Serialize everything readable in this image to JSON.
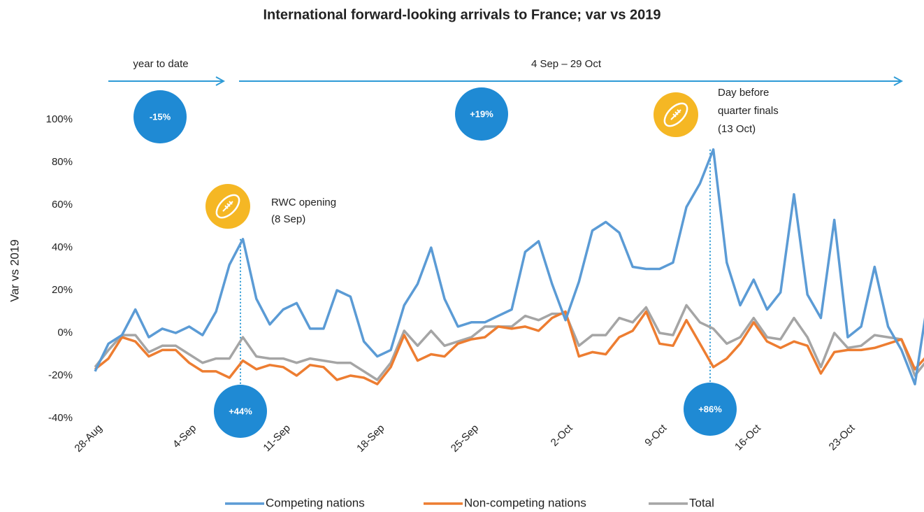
{
  "chart_data": {
    "type": "line",
    "title": "International forward-looking arrivals to France; var vs 2019",
    "y_label": "Var vs 2019",
    "categories": [
      "28-Aug",
      null,
      null,
      null,
      null,
      null,
      null,
      "4-Sep",
      null,
      null,
      null,
      null,
      null,
      null,
      "11-Sep",
      null,
      null,
      null,
      null,
      null,
      null,
      "18-Sep",
      null,
      null,
      null,
      null,
      null,
      null,
      "25-Sep",
      null,
      null,
      null,
      null,
      null,
      null,
      "2-Oct",
      null,
      null,
      null,
      null,
      null,
      null,
      "9-Oct",
      null,
      null,
      null,
      null,
      null,
      null,
      "16-Oct",
      null,
      null,
      null,
      null,
      null,
      null,
      "23-Oct",
      null,
      null,
      null,
      null,
      null,
      null
    ],
    "series": [
      {
        "name": "Competing nations",
        "color": "#5b9bd5",
        "values": [
          -18,
          -5,
          -1,
          11,
          -2,
          2,
          0,
          3,
          -1,
          10,
          32,
          44,
          16,
          4,
          11,
          14,
          2,
          2,
          20,
          17,
          -4,
          -11,
          -8,
          13,
          23,
          40,
          16,
          3,
          5,
          5,
          8,
          11,
          38,
          43,
          23,
          6,
          24,
          48,
          52,
          47,
          31,
          30,
          30,
          33,
          59,
          70,
          86,
          33,
          13,
          25,
          11,
          19,
          65,
          18,
          7,
          53,
          -2,
          3,
          31,
          3,
          -8,
          -24,
          17
        ]
      },
      {
        "name": "Non-competing nations",
        "color": "#ed7d31",
        "values": [
          -17,
          -12,
          -2,
          -4,
          -11,
          -8,
          -8,
          -14,
          -18,
          -18,
          -21,
          -13,
          -17,
          -15,
          -16,
          -20,
          -15,
          -16,
          -22,
          -20,
          -21,
          -24,
          -16,
          -1,
          -13,
          -10,
          -11,
          -5,
          -3,
          -2,
          3,
          2,
          3,
          1,
          7,
          10,
          -11,
          -9,
          -10,
          -2,
          1,
          10,
          -5,
          -6,
          6,
          -5,
          -16,
          -12,
          -5,
          5,
          -4,
          -7,
          -4,
          -6,
          -19,
          -9,
          -8,
          -8,
          -7,
          -5,
          -3,
          -17,
          -10
        ]
      },
      {
        "name": "Total",
        "color": "#a5a5a5",
        "values": [
          -16,
          -8,
          -1,
          -1,
          -9,
          -6,
          -6,
          -10,
          -14,
          -12,
          -12,
          -2,
          -11,
          -12,
          -12,
          -14,
          -12,
          -13,
          -14,
          -14,
          -18,
          -22,
          -14,
          1,
          -6,
          1,
          -6,
          -4,
          -2,
          3,
          3,
          3,
          8,
          6,
          9,
          9,
          -6,
          -1,
          -1,
          7,
          5,
          12,
          0,
          -1,
          13,
          5,
          2,
          -5,
          -2,
          7,
          -2,
          -3,
          7,
          -2,
          -16,
          0,
          -7,
          -6,
          -1,
          -2,
          -3,
          -20,
          -12
        ]
      }
    ],
    "ylim": [
      -40,
      100
    ],
    "yticks": [
      {
        "value": -40,
        "label": "-40%"
      },
      {
        "value": -20,
        "label": "-20%"
      },
      {
        "value": 0,
        "label": "0%"
      },
      {
        "value": 20,
        "label": "20%"
      },
      {
        "value": 40,
        "label": "40%"
      },
      {
        "value": 60,
        "label": "60%"
      },
      {
        "value": 80,
        "label": "80%"
      },
      {
        "value": 100,
        "label": "100%"
      }
    ],
    "annotations": {
      "period_1": "year to date",
      "period_1_value": "-15%",
      "period_2": "4 Sep – 29 Oct",
      "period_2_value": "+19%",
      "event_1": [
        "RWC opening",
        "(8 Sep)"
      ],
      "event_1_value": "+44%",
      "event_2": [
        "Day before",
        "quarter finals",
        "(13 Oct)"
      ],
      "event_2_value": "+86%"
    }
  }
}
